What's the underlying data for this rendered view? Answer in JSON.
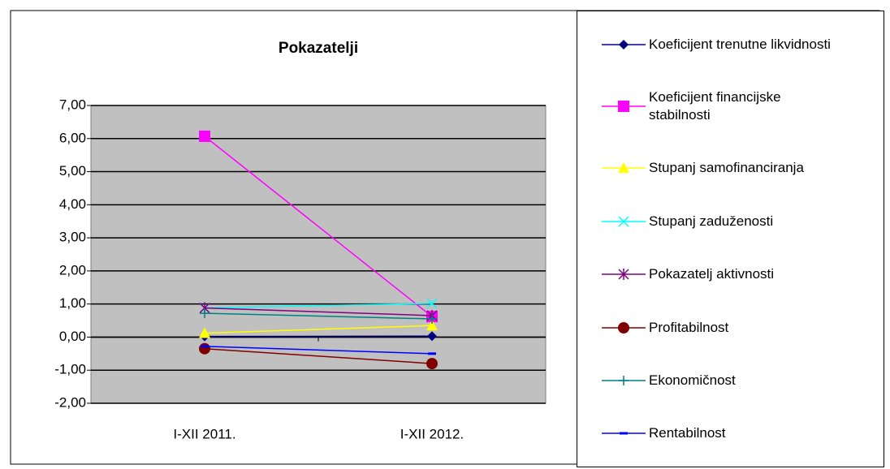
{
  "chart_data": {
    "type": "line",
    "title": "Pokazatelji",
    "categories": [
      "I-XII 2011.",
      "I-XII 2012."
    ],
    "series": [
      {
        "name": "Koeficijent trenutne likvidnosti",
        "color": "#000080",
        "marker": "diamond",
        "values": [
          0.02,
          0.03
        ]
      },
      {
        "name": "Koeficijent financijske stabilnosti",
        "color": "#FF00FF",
        "marker": "square",
        "values": [
          6.07,
          0.62
        ]
      },
      {
        "name": "Stupanj samofinanciranja",
        "color": "#FFFF00",
        "marker": "triangle",
        "values": [
          0.12,
          0.35
        ]
      },
      {
        "name": "Stupanj zaduženosti",
        "color": "#00FFFF",
        "marker": "x",
        "values": [
          0.88,
          1.02
        ]
      },
      {
        "name": "Pokazatelj aktivnosti",
        "color": "#800080",
        "marker": "star",
        "values": [
          0.88,
          0.65
        ]
      },
      {
        "name": "Profitabilnost",
        "color": "#800000",
        "marker": "circle",
        "values": [
          -0.35,
          -0.8
        ]
      },
      {
        "name": "Ekonomičnost",
        "color": "#008080",
        "marker": "plus",
        "values": [
          0.72,
          0.55
        ]
      },
      {
        "name": "Rentabilnost",
        "color": "#0000FF",
        "marker": "dash",
        "values": [
          -0.28,
          -0.5
        ]
      }
    ],
    "ylim": [
      -2,
      7
    ],
    "yticks": [
      {
        "value": -2,
        "label": "-2,00"
      },
      {
        "value": -1,
        "label": "-1,00"
      },
      {
        "value": 0,
        "label": "0,00"
      },
      {
        "value": 1,
        "label": "1,00"
      },
      {
        "value": 2,
        "label": "2,00"
      },
      {
        "value": 3,
        "label": "3,00"
      },
      {
        "value": 4,
        "label": "4,00"
      },
      {
        "value": 5,
        "label": "5,00"
      },
      {
        "value": 6,
        "label": "6,00"
      },
      {
        "value": 7,
        "label": "7,00"
      }
    ],
    "grid": true,
    "plot_background": "#C0C0C0",
    "legend": "right"
  }
}
